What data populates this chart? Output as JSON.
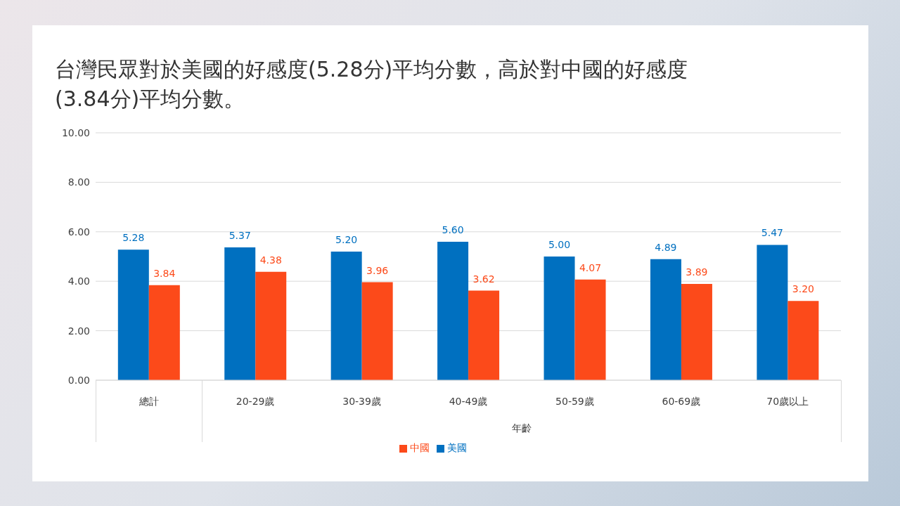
{
  "chart_data": {
    "type": "bar",
    "title": "台灣民眾對於美國的好感度(5.28分)平均分數，高於對中國的好感度(3.84分)平均分數。",
    "xlabel": "年齡",
    "categories": [
      "總計",
      "20-29歲",
      "30-39歲",
      "40-49歲",
      "50-59歲",
      "60-69歲",
      "70歲以上"
    ],
    "series": [
      {
        "name": "美國",
        "color": "#0070c0",
        "values": [
          5.28,
          5.37,
          5.2,
          5.6,
          5.0,
          4.89,
          5.47
        ],
        "value_labels": [
          "5.28",
          "5.37",
          "5.20",
          "5.60",
          "5.00",
          "4.89",
          "5.47"
        ]
      },
      {
        "name": "中國",
        "color": "#fc4a1a",
        "values": [
          3.84,
          4.38,
          3.96,
          3.62,
          4.07,
          3.89,
          3.2
        ],
        "value_labels": [
          "3.84",
          "4.38",
          "3.96",
          "3.62",
          "4.07",
          "3.89",
          "3.20"
        ]
      }
    ],
    "ylim": [
      0,
      10
    ],
    "yticks": [
      {
        "value": 0,
        "label": "0.00"
      },
      {
        "value": 2,
        "label": "2.00"
      },
      {
        "value": 4,
        "label": "4.00"
      },
      {
        "value": 6,
        "label": "6.00"
      },
      {
        "value": 8,
        "label": "8.00"
      },
      {
        "value": 10,
        "label": "10.00"
      }
    ],
    "grid": "y",
    "legend": "bottom"
  }
}
